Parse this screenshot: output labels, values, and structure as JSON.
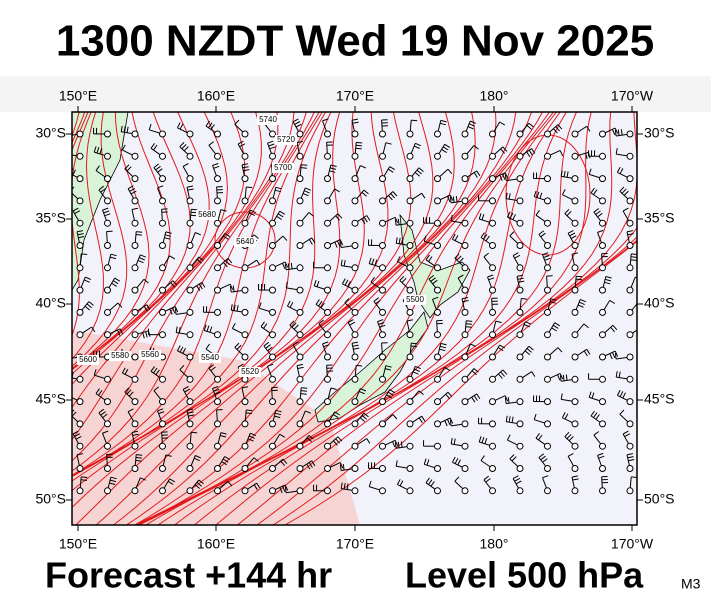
{
  "title": "1300 NZDT Wed 19 Nov 2025",
  "lon_labels": [
    "150°E",
    "160°E",
    "170°E",
    "180°",
    "170°W"
  ],
  "lat_labels": [
    "30°S",
    "35°S",
    "40°S",
    "45°S",
    "50°S"
  ],
  "contour_labels": [
    "5740",
    "5720",
    "5700",
    "5680",
    "5640",
    "5600",
    "5580",
    "5560",
    "5540",
    "5520",
    "5500"
  ],
  "footer": {
    "forecast": "Forecast +144 hr",
    "level": "Level 500 hPa",
    "model": "M3"
  }
}
